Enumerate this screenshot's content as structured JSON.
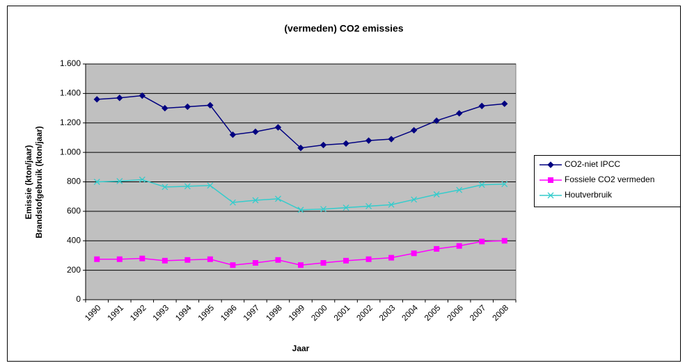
{
  "chart_data": {
    "type": "line",
    "title": "(vermeden) CO2 emissies",
    "x_label": "Jaar",
    "y_label": [
      "Emissie (kton/jaar)",
      "Brandstofgebruik (kton/jaar)"
    ],
    "categories": [
      "1990",
      "1991",
      "1992",
      "1993",
      "1994",
      "1995",
      "1996",
      "1997",
      "1998",
      "1999",
      "2000",
      "2001",
      "2002",
      "2003",
      "2004",
      "2005",
      "2006",
      "2007",
      "2008"
    ],
    "series": [
      {
        "name": "CO2-niet IPCC",
        "color": "#000080",
        "marker": "diamond",
        "values": [
          1360,
          1370,
          1385,
          1300,
          1310,
          1320,
          1120,
          1140,
          1170,
          1030,
          1050,
          1060,
          1080,
          1090,
          1150,
          1215,
          1265,
          1315,
          1330
        ]
      },
      {
        "name": "Fossiele CO2 vermeden",
        "color": "#ff00ff",
        "marker": "square",
        "values": [
          275,
          275,
          280,
          265,
          270,
          275,
          235,
          250,
          270,
          235,
          250,
          265,
          275,
          285,
          315,
          345,
          365,
          395,
          400
        ]
      },
      {
        "name": "Houtverbruik",
        "color": "#33cccc",
        "marker": "x",
        "values": [
          800,
          805,
          815,
          765,
          770,
          775,
          660,
          675,
          685,
          610,
          615,
          625,
          635,
          645,
          680,
          715,
          745,
          780,
          785
        ]
      }
    ],
    "ylim": [
      0,
      1600
    ],
    "yticks": [
      0,
      200,
      400,
      600,
      800,
      {
        "value": 1000,
        "label": "1.000"
      },
      {
        "value": 1200,
        "label": "1.200"
      },
      {
        "value": 1400,
        "label": "1.400"
      },
      {
        "value": 1600,
        "label": "1.600"
      }
    ],
    "grid": true,
    "legend": "right"
  }
}
